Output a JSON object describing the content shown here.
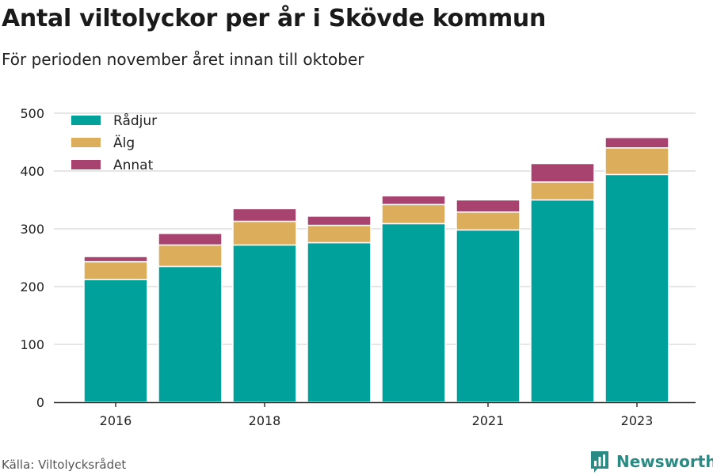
{
  "header": {
    "title": "Antal viltolyckor per år i Skövde kommun",
    "subtitle": "För perioden november året innan till oktober"
  },
  "footer": {
    "source": "Källa: Viltolycksrådet",
    "brand": "Newsworthy",
    "brand_icon": "bar-chart-logo-icon",
    "brand_color": "#2a8a84"
  },
  "chart_data": {
    "type": "bar",
    "stacked": true,
    "categories": [
      "2016",
      "2017",
      "2018",
      "2019",
      "2020",
      "2021",
      "2022",
      "2023"
    ],
    "x_tick_labels": [
      "2016",
      "",
      "2018",
      "",
      "",
      "2021",
      "",
      "2023"
    ],
    "series": [
      {
        "name": "Rådjur",
        "color": "#00a19a",
        "values": [
          212,
          235,
          272,
          276,
          309,
          298,
          350,
          394
        ]
      },
      {
        "name": "Älg",
        "color": "#dcad5b",
        "values": [
          31,
          37,
          41,
          30,
          33,
          31,
          31,
          46
        ]
      },
      {
        "name": "Annat",
        "color": "#a84370",
        "values": [
          9,
          20,
          22,
          16,
          15,
          21,
          32,
          18
        ]
      }
    ],
    "y_ticks": [
      0,
      100,
      200,
      300,
      400,
      500
    ],
    "ylim": [
      0,
      500
    ],
    "xlabel": "",
    "ylabel": "",
    "grid": true,
    "legend_position": "top-left"
  }
}
